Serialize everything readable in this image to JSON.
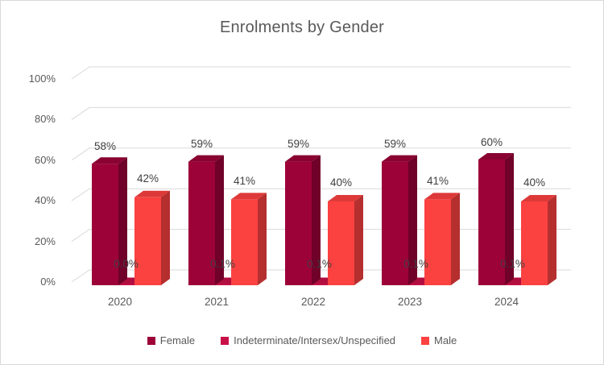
{
  "chart_data": {
    "type": "bar",
    "variant": "3d-clustered-column",
    "title": "Enrolments by Gender",
    "categories": [
      "2020",
      "2021",
      "2022",
      "2023",
      "2024"
    ],
    "series": [
      {
        "name": "Female",
        "color": "#9C0238",
        "values": [
          58,
          59,
          59,
          59,
          60
        ],
        "labels": [
          "58%",
          "59%",
          "59%",
          "59%",
          "60%"
        ]
      },
      {
        "name": "Indeterminate/Intersex/Unspecified",
        "color": "#C81048",
        "values": [
          0.0,
          0.1,
          0.1,
          0.1,
          0.1
        ],
        "labels": [
          "0.0%",
          "0.1%",
          "0.1%",
          "0.1%",
          "0.1%"
        ]
      },
      {
        "name": "Male",
        "color": "#FC4141",
        "values": [
          42,
          41,
          40,
          41,
          40
        ],
        "labels": [
          "42%",
          "41%",
          "40%",
          "41%",
          "40%"
        ]
      }
    ],
    "y_ticks": [
      "0%",
      "20%",
      "40%",
      "60%",
      "80%",
      "100%"
    ],
    "ylim": [
      0,
      100
    ],
    "grid": true,
    "legend_position": "bottom",
    "colors": {
      "grid_line": "#D9D9D9",
      "axis_text": "#595959",
      "data_label_text": "#404040",
      "frame_border": "#D9D9D9"
    }
  }
}
